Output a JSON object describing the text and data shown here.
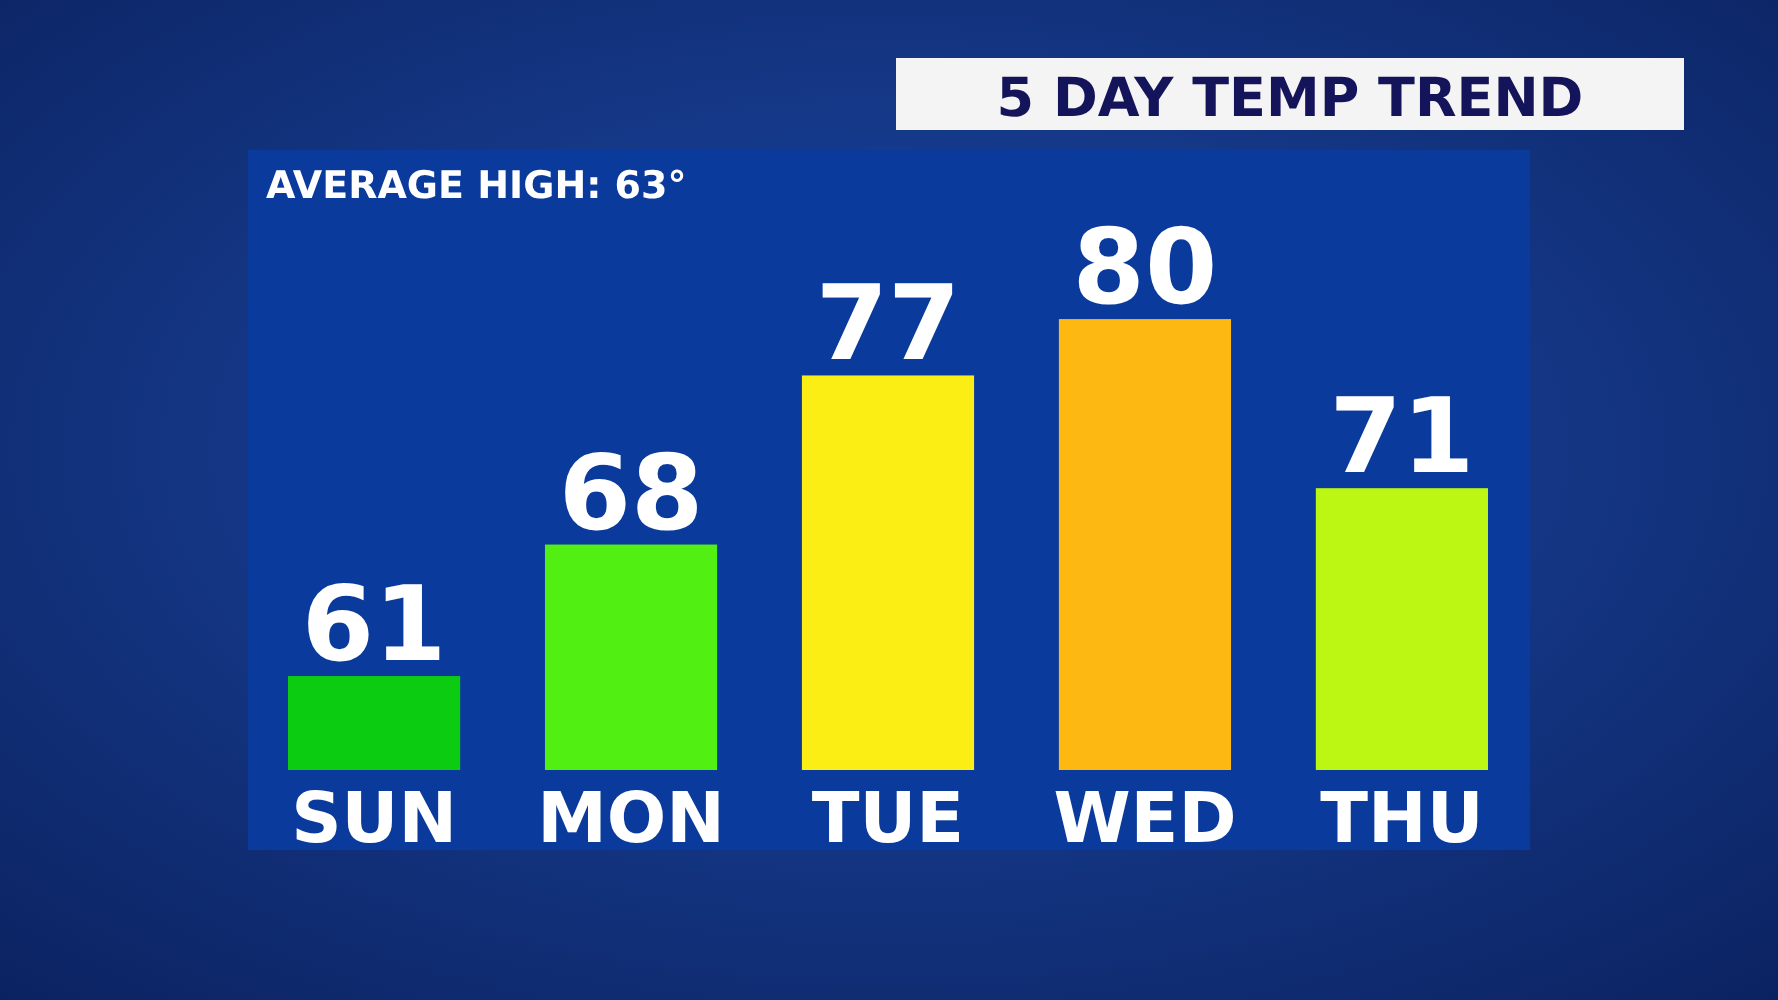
{
  "chart_data": {
    "type": "bar",
    "title": "5 DAY TEMP TREND",
    "annotations": [
      "AVERAGE HIGH: 63°"
    ],
    "categories": [
      "SUN",
      "MON",
      "TUE",
      "WED",
      "THU"
    ],
    "values": [
      61,
      68,
      77,
      80,
      71
    ],
    "colors": [
      "#0ccc12",
      "#52f012",
      "#fbee14",
      "#fdb912",
      "#bcf714"
    ],
    "ylim": [
      56,
      89
    ],
    "tick_labels": "x",
    "data_labels": true
  }
}
